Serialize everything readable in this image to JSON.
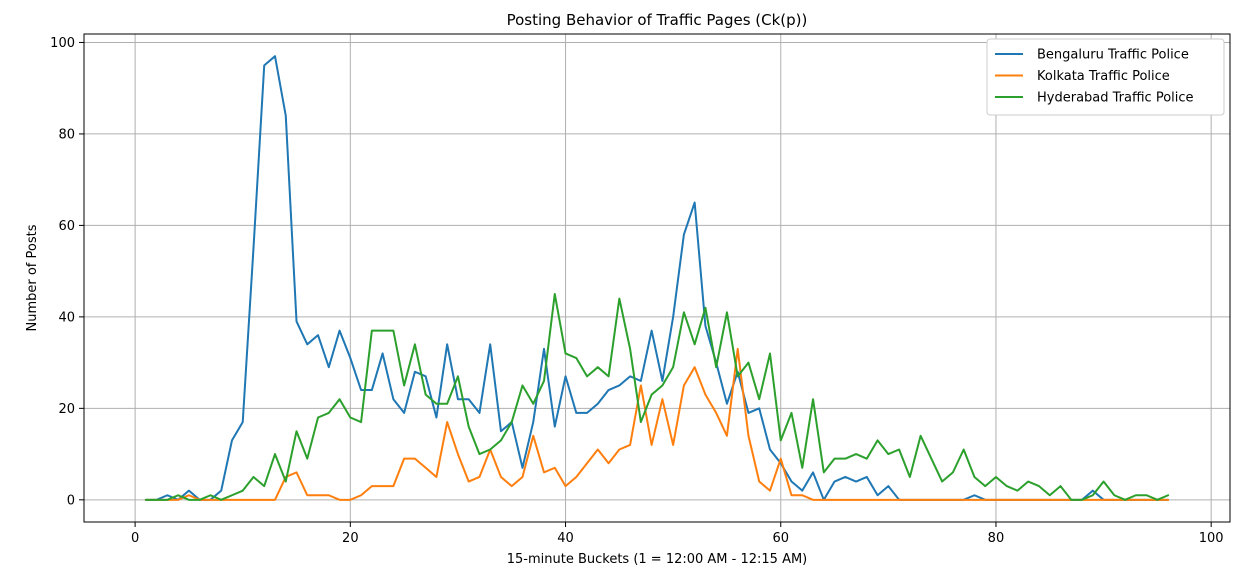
{
  "chart_data": {
    "type": "line",
    "title": "Posting Behavior of Traffic Pages (Ck(p))",
    "xlabel": "15-minute Buckets (1 = 12:00 AM - 12:15 AM)",
    "ylabel": "Number of Posts",
    "xlim": [
      -4.75,
      101.75
    ],
    "ylim": [
      -4.85,
      101.85
    ],
    "xticks": [
      0,
      20,
      40,
      60,
      80,
      100
    ],
    "yticks": [
      0,
      20,
      40,
      60,
      80,
      100
    ],
    "grid": true,
    "legend_position": "top-right",
    "x": [
      1,
      2,
      3,
      4,
      5,
      6,
      7,
      8,
      9,
      10,
      11,
      12,
      13,
      14,
      15,
      16,
      17,
      18,
      19,
      20,
      21,
      22,
      23,
      24,
      25,
      26,
      27,
      28,
      29,
      30,
      31,
      32,
      33,
      34,
      35,
      36,
      37,
      38,
      39,
      40,
      41,
      42,
      43,
      44,
      45,
      46,
      47,
      48,
      49,
      50,
      51,
      52,
      53,
      54,
      55,
      56,
      57,
      58,
      59,
      60,
      61,
      62,
      63,
      64,
      65,
      66,
      67,
      68,
      69,
      70,
      71,
      72,
      73,
      74,
      75,
      76,
      77,
      78,
      79,
      80,
      81,
      82,
      83,
      84,
      85,
      86,
      87,
      88,
      89,
      90,
      91,
      92,
      93,
      94,
      95,
      96
    ],
    "series": [
      {
        "name": "Bengaluru Traffic Police",
        "color": "#1f77b4",
        "values": [
          0,
          0,
          1,
          0,
          2,
          0,
          0,
          2,
          13,
          17,
          55,
          95,
          97,
          84,
          39,
          34,
          36,
          29,
          37,
          31,
          24,
          24,
          32,
          22,
          19,
          28,
          27,
          18,
          34,
          22,
          22,
          19,
          34,
          15,
          17,
          7,
          17,
          33,
          16,
          27,
          19,
          19,
          21,
          24,
          25,
          27,
          26,
          37,
          26,
          40,
          58,
          65,
          38,
          30,
          21,
          28,
          19,
          20,
          11,
          8,
          4,
          2,
          6,
          0,
          4,
          5,
          4,
          5,
          1,
          3,
          0,
          0,
          0,
          0,
          0,
          0,
          0,
          1,
          0,
          0,
          0,
          0,
          0,
          0,
          0,
          0,
          0,
          0,
          2,
          0,
          0,
          0,
          0,
          0,
          0,
          0
        ]
      },
      {
        "name": "Kolkata Traffic Police",
        "color": "#ff7f0e",
        "values": [
          0,
          0,
          0,
          0,
          1,
          0,
          0,
          0,
          0,
          0,
          0,
          0,
          0,
          5,
          6,
          1,
          1,
          1,
          0,
          0,
          1,
          3,
          3,
          3,
          9,
          9,
          7,
          5,
          17,
          10,
          4,
          5,
          11,
          5,
          3,
          5,
          14,
          6,
          7,
          3,
          5,
          8,
          11,
          8,
          11,
          12,
          25,
          12,
          22,
          12,
          25,
          29,
          23,
          19,
          14,
          33,
          14,
          4,
          2,
          9,
          1,
          1,
          0,
          0,
          0,
          0,
          0,
          0,
          0,
          0,
          0,
          0,
          0,
          0,
          0,
          0,
          0,
          0,
          0,
          0,
          0,
          0,
          0,
          0,
          0,
          0,
          0,
          0,
          0,
          0,
          0,
          0,
          0,
          0,
          0,
          0
        ]
      },
      {
        "name": "Hyderabad Traffic Police",
        "color": "#2ca02c",
        "values": [
          0,
          0,
          0,
          1,
          0,
          0,
          1,
          0,
          1,
          2,
          5,
          3,
          10,
          4,
          15,
          9,
          18,
          19,
          22,
          18,
          17,
          37,
          37,
          37,
          25,
          34,
          23,
          21,
          21,
          27,
          16,
          10,
          11,
          13,
          17,
          25,
          21,
          26,
          45,
          32,
          31,
          27,
          29,
          27,
          44,
          33,
          17,
          23,
          25,
          29,
          41,
          34,
          42,
          29,
          41,
          27,
          30,
          22,
          32,
          13,
          19,
          7,
          22,
          6,
          9,
          9,
          10,
          9,
          13,
          10,
          11,
          5,
          14,
          9,
          4,
          6,
          11,
          5,
          3,
          5,
          3,
          2,
          4,
          3,
          1,
          3,
          0,
          0,
          1,
          4,
          1,
          0,
          1,
          1,
          0,
          1
        ]
      }
    ]
  }
}
